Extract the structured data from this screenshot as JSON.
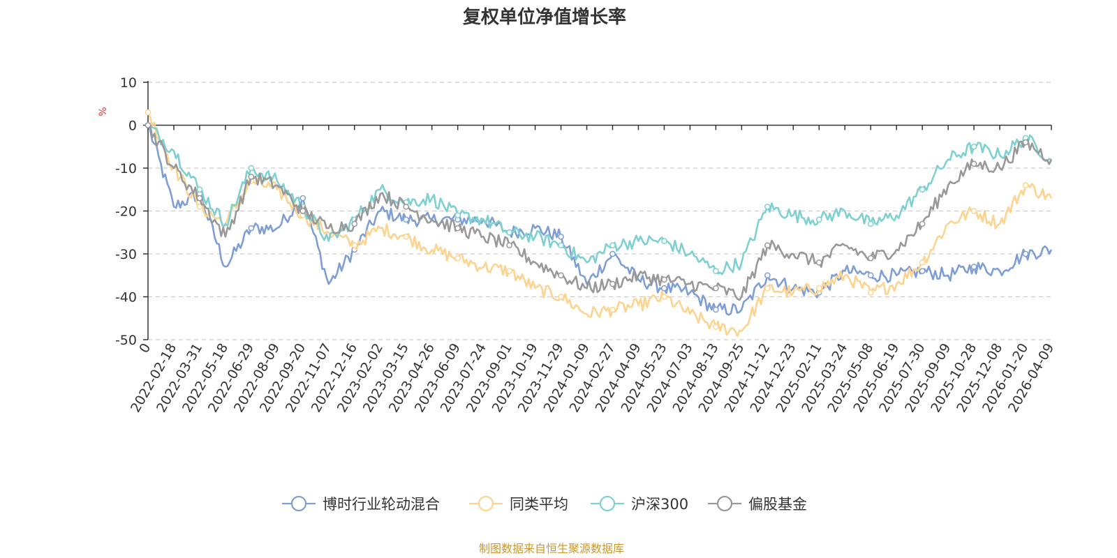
{
  "chart_data": {
    "type": "line",
    "title": "复权单位净值增长率",
    "ylabel": "%",
    "xlabel": "",
    "ylim": [
      -50,
      10
    ],
    "yticks": [
      10,
      0,
      -10,
      -20,
      -30,
      -40,
      -50
    ],
    "grid": true,
    "legend_position": "bottom",
    "x": [
      "0",
      "2022-02-18",
      "2022-03-31",
      "2022-05-18",
      "2022-06-29",
      "2022-08-09",
      "2022-09-20",
      "2022-11-07",
      "2022-12-16",
      "2023-02-02",
      "2023-03-15",
      "2023-04-26",
      "2023-06-09",
      "2023-07-24",
      "2023-09-01",
      "2023-10-19",
      "2023-11-29",
      "2024-01-09",
      "2024-02-27",
      "2024-04-09",
      "2024-05-23",
      "2024-07-03",
      "2024-08-13",
      "2024-09-25",
      "2024-11-12",
      "2024-12-23",
      "2025-02-11",
      "2025-03-24",
      "2025-05-08",
      "2025-06-19",
      "2025-07-30",
      "2025-09-09",
      "2025-10-28",
      "2025-12-08",
      "2026-01-20",
      "2026-04-09"
    ],
    "series": [
      {
        "name": "博时行业轮动混合",
        "color": "#7f9fd4",
        "values": [
          0,
          -19,
          -16,
          -33,
          -24,
          -24,
          -17,
          -37,
          -29,
          -20,
          -22,
          -22,
          -22,
          -22,
          -25,
          -24,
          -26,
          -37,
          -30,
          -36,
          -38,
          -39,
          -43,
          -43,
          -35,
          -38,
          -39,
          -34,
          -35,
          -35,
          -34,
          -35,
          -33,
          -34,
          -30,
          -29
        ]
      },
      {
        "name": "同类平均",
        "color": "#fcd48f",
        "values": [
          3,
          -10,
          -19,
          -23,
          -13,
          -15,
          -21,
          -25,
          -28,
          -24,
          -26,
          -29,
          -31,
          -33,
          -34,
          -38,
          -40,
          -44,
          -43,
          -42,
          -40,
          -44,
          -47,
          -48,
          -38,
          -39,
          -38,
          -35,
          -39,
          -37,
          -32,
          -23,
          -20,
          -23,
          -14,
          -17
        ]
      },
      {
        "name": "沪深300",
        "color": "#7fd1d1",
        "values": [
          0,
          -6,
          -15,
          -23,
          -10,
          -13,
          -19,
          -27,
          -22,
          -15,
          -18,
          -17,
          -21,
          -22,
          -25,
          -26,
          -28,
          -32,
          -28,
          -27,
          -27,
          -30,
          -34,
          -32,
          -19,
          -21,
          -22,
          -20,
          -23,
          -21,
          -15,
          -8,
          -5,
          -7,
          -3,
          -8
        ]
      },
      {
        "name": "偏股基金",
        "color": "#999999",
        "values": [
          0,
          -10,
          -17,
          -26,
          -12,
          -14,
          -20,
          -24,
          -23,
          -16,
          -19,
          -22,
          -24,
          -26,
          -28,
          -32,
          -35,
          -38,
          -37,
          -35,
          -36,
          -37,
          -38,
          -40,
          -28,
          -30,
          -32,
          -28,
          -31,
          -29,
          -23,
          -14,
          -9,
          -10,
          -4,
          -8
        ]
      }
    ]
  },
  "source_text": "制图数据来自恒生聚源数据库"
}
